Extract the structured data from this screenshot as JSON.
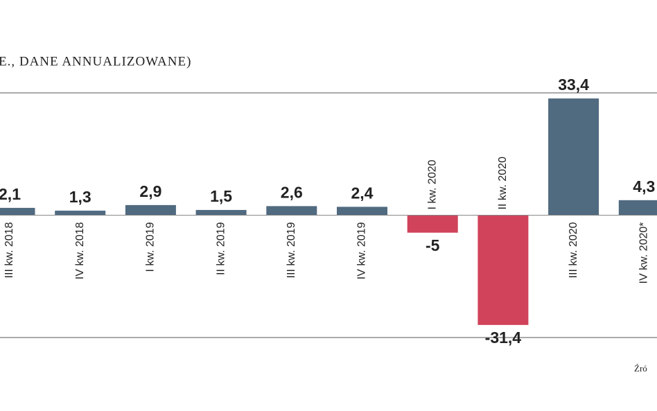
{
  "chart_data": {
    "type": "bar",
    "title": "E., DANE ANNUALIZOWANE)",
    "source": "Źró",
    "categories": [
      "III kw. 2018",
      "IV kw. 2018",
      "I kw. 2019",
      "II kw. 2019",
      "III kw. 2019",
      "IV kw. 2019",
      "I kw. 2020",
      "II kw. 2020",
      "III kw. 2020",
      "IV kw. 2020*"
    ],
    "values": [
      2.1,
      1.3,
      2.9,
      1.5,
      2.6,
      2.4,
      -5,
      -31.4,
      33.4,
      4.3
    ],
    "value_labels": [
      "2,1",
      "1,3",
      "2,9",
      "1,5",
      "2,6",
      "2,4",
      "-5",
      "-31,4",
      "33,4",
      "4,3"
    ],
    "colors": {
      "positive": "#506a80",
      "negative": "#d0435a"
    },
    "ylim": [
      -35,
      35
    ]
  }
}
